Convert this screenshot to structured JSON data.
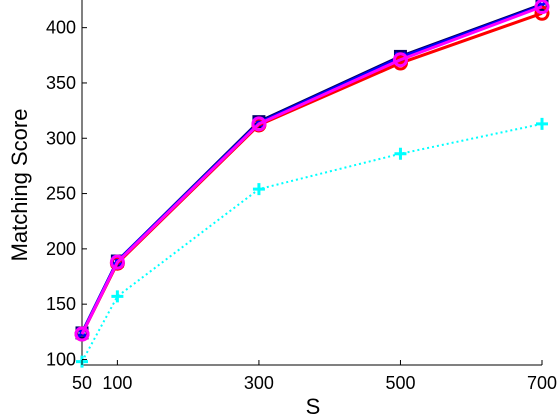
{
  "chart_data": {
    "type": "line",
    "title": "",
    "xlabel": "S",
    "ylabel": "Matching Score",
    "x": [
      50,
      100,
      300,
      500,
      700
    ],
    "xticks": [
      "50",
      "100",
      "300",
      "500",
      "700"
    ],
    "yticks": [
      "100",
      "150",
      "200",
      "250",
      "300",
      "350",
      "400"
    ],
    "xlim": [
      50,
      700
    ],
    "ylim": [
      95,
      425
    ],
    "grid": false,
    "legend": "none",
    "series": [
      {
        "color": "#000066",
        "line": "solid",
        "marker": "square",
        "values": [
          124,
          189,
          315,
          374,
          421
        ]
      },
      {
        "color": "#0000ff",
        "line": "solid",
        "marker": "x",
        "values": [
          124,
          189,
          314,
          373,
          420
        ]
      },
      {
        "color": "#ff0000",
        "line": "solid",
        "marker": "circle",
        "values": [
          123,
          187,
          312,
          368,
          413
        ]
      },
      {
        "color": "#ff00ff",
        "line": "solid",
        "marker": "circle",
        "values": [
          123,
          188,
          313,
          371,
          419
        ]
      },
      {
        "color": "#00ffff",
        "line": "dotted",
        "marker": "plus",
        "values": [
          98,
          157,
          254,
          286,
          313
        ]
      }
    ]
  }
}
